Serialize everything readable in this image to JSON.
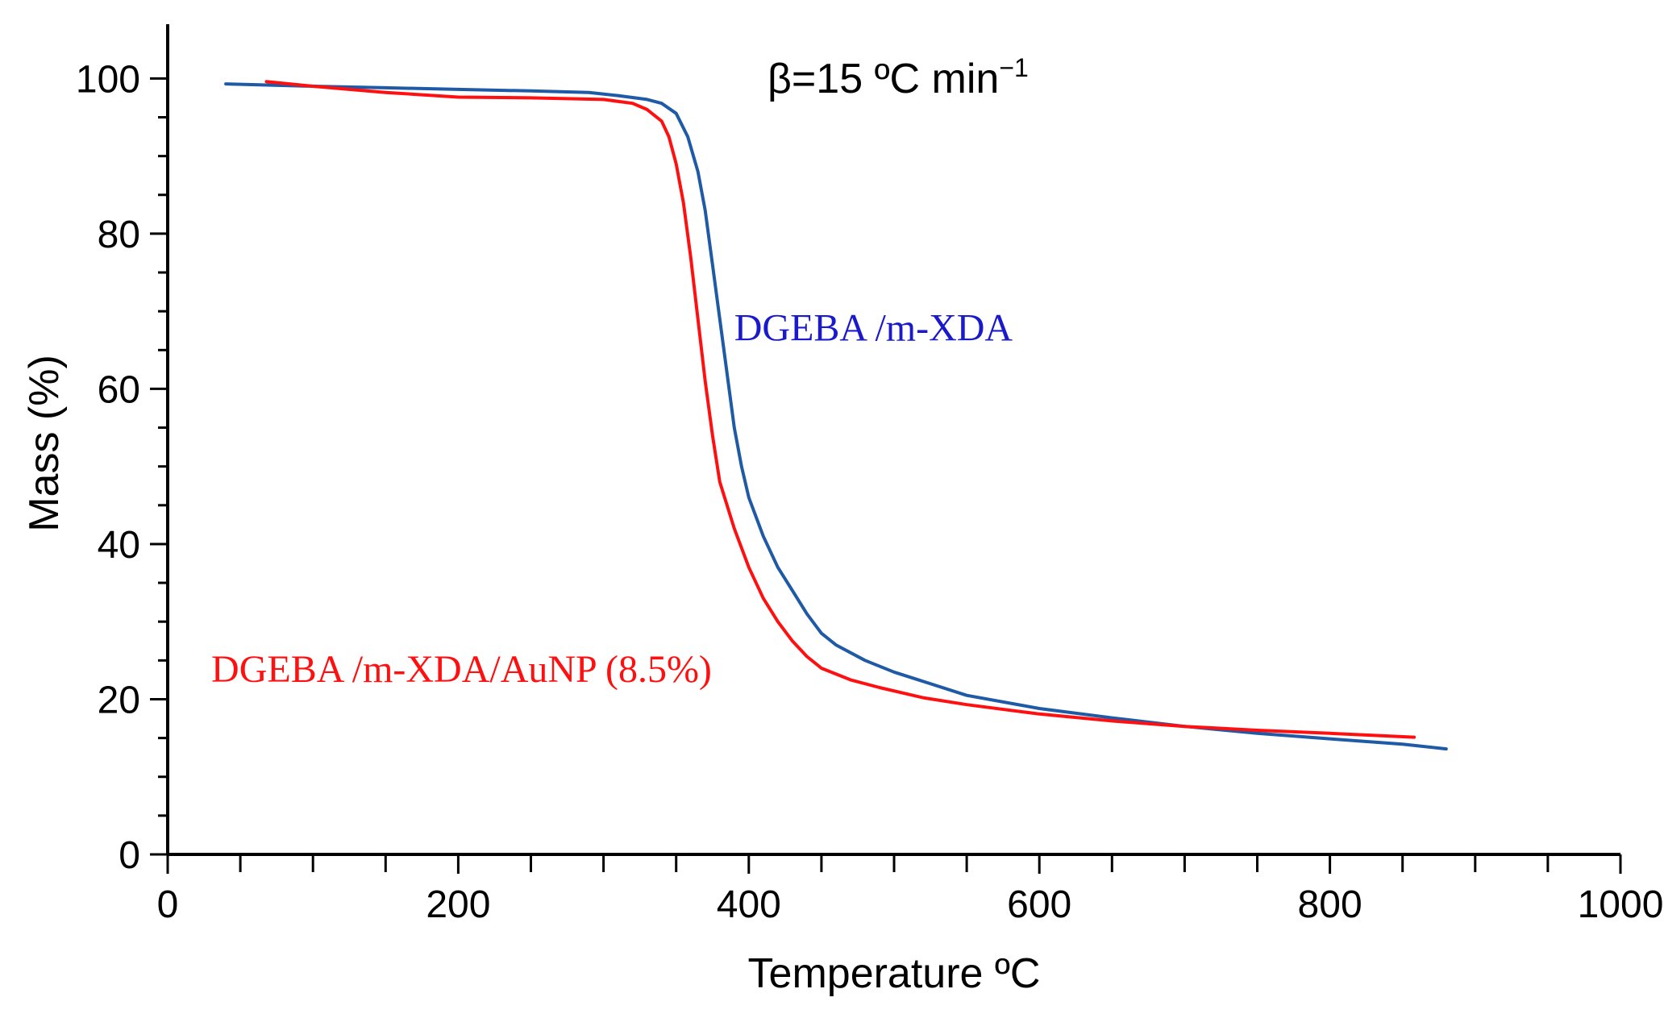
{
  "chart_data": {
    "type": "line",
    "title": "",
    "annotation": {
      "prefix": "β=15 ºC min",
      "superscript": "−1"
    },
    "xlabel": "Temperature ºC",
    "ylabel": "Mass (%)",
    "xlim": [
      0,
      1000
    ],
    "ylim": [
      0,
      107
    ],
    "x_major_ticks": [
      0,
      200,
      400,
      600,
      800,
      1000
    ],
    "x_minor_ticks": [
      50,
      100,
      150,
      250,
      300,
      350,
      450,
      500,
      550,
      650,
      700,
      750,
      850,
      900,
      950
    ],
    "y_major_ticks": [
      0,
      20,
      40,
      60,
      80,
      100
    ],
    "y_minor_ticks": [
      5,
      10,
      15,
      25,
      30,
      35,
      45,
      50,
      55,
      65,
      70,
      75,
      85,
      90,
      95
    ],
    "x_tick_labels": [
      "0",
      "200",
      "400",
      "600",
      "800",
      "1000"
    ],
    "y_tick_labels": [
      "0",
      "20",
      "40",
      "60",
      "80",
      "100"
    ],
    "grid": false,
    "legend": "inline labels",
    "series": [
      {
        "name": "DGEBA /m-XDA",
        "color": "#1f5aa6",
        "label_color": "#1a1acc",
        "label_anchor": {
          "x": 390,
          "y": 68
        },
        "points": [
          [
            40,
            99.3
          ],
          [
            100,
            99.0
          ],
          [
            150,
            98.8
          ],
          [
            200,
            98.6
          ],
          [
            250,
            98.4
          ],
          [
            290,
            98.2
          ],
          [
            310,
            97.8
          ],
          [
            330,
            97.3
          ],
          [
            340,
            96.8
          ],
          [
            350,
            95.5
          ],
          [
            358,
            92.5
          ],
          [
            365,
            88
          ],
          [
            370,
            83
          ],
          [
            375,
            76
          ],
          [
            380,
            69
          ],
          [
            385,
            62
          ],
          [
            390,
            55
          ],
          [
            395,
            50
          ],
          [
            400,
            46
          ],
          [
            410,
            41
          ],
          [
            420,
            37
          ],
          [
            430,
            34
          ],
          [
            440,
            31
          ],
          [
            450,
            28.5
          ],
          [
            460,
            27
          ],
          [
            480,
            25
          ],
          [
            500,
            23.5
          ],
          [
            550,
            20.5
          ],
          [
            600,
            18.8
          ],
          [
            650,
            17.6
          ],
          [
            700,
            16.5
          ],
          [
            750,
            15.6
          ],
          [
            800,
            14.9
          ],
          [
            850,
            14.2
          ],
          [
            880,
            13.6
          ]
        ]
      },
      {
        "name": "DGEBA /m-XDA/AuNP (8.5%)",
        "color": "#ff1010",
        "label_color": "#ff1010",
        "label_anchor": {
          "x": 30,
          "y": 24
        },
        "points": [
          [
            68,
            99.6
          ],
          [
            100,
            99.0
          ],
          [
            150,
            98.2
          ],
          [
            200,
            97.6
          ],
          [
            250,
            97.5
          ],
          [
            300,
            97.3
          ],
          [
            320,
            96.8
          ],
          [
            330,
            96.0
          ],
          [
            340,
            94.5
          ],
          [
            345,
            92.5
          ],
          [
            350,
            89
          ],
          [
            355,
            84
          ],
          [
            360,
            77
          ],
          [
            365,
            69
          ],
          [
            370,
            61
          ],
          [
            375,
            54
          ],
          [
            380,
            48
          ],
          [
            390,
            42
          ],
          [
            400,
            37
          ],
          [
            410,
            33
          ],
          [
            420,
            30
          ],
          [
            430,
            27.5
          ],
          [
            440,
            25.5
          ],
          [
            450,
            24
          ],
          [
            470,
            22.5
          ],
          [
            490,
            21.5
          ],
          [
            520,
            20.2
          ],
          [
            550,
            19.3
          ],
          [
            600,
            18.1
          ],
          [
            650,
            17.2
          ],
          [
            700,
            16.5
          ],
          [
            750,
            16.0
          ],
          [
            800,
            15.6
          ],
          [
            858,
            15.1
          ]
        ]
      }
    ]
  }
}
